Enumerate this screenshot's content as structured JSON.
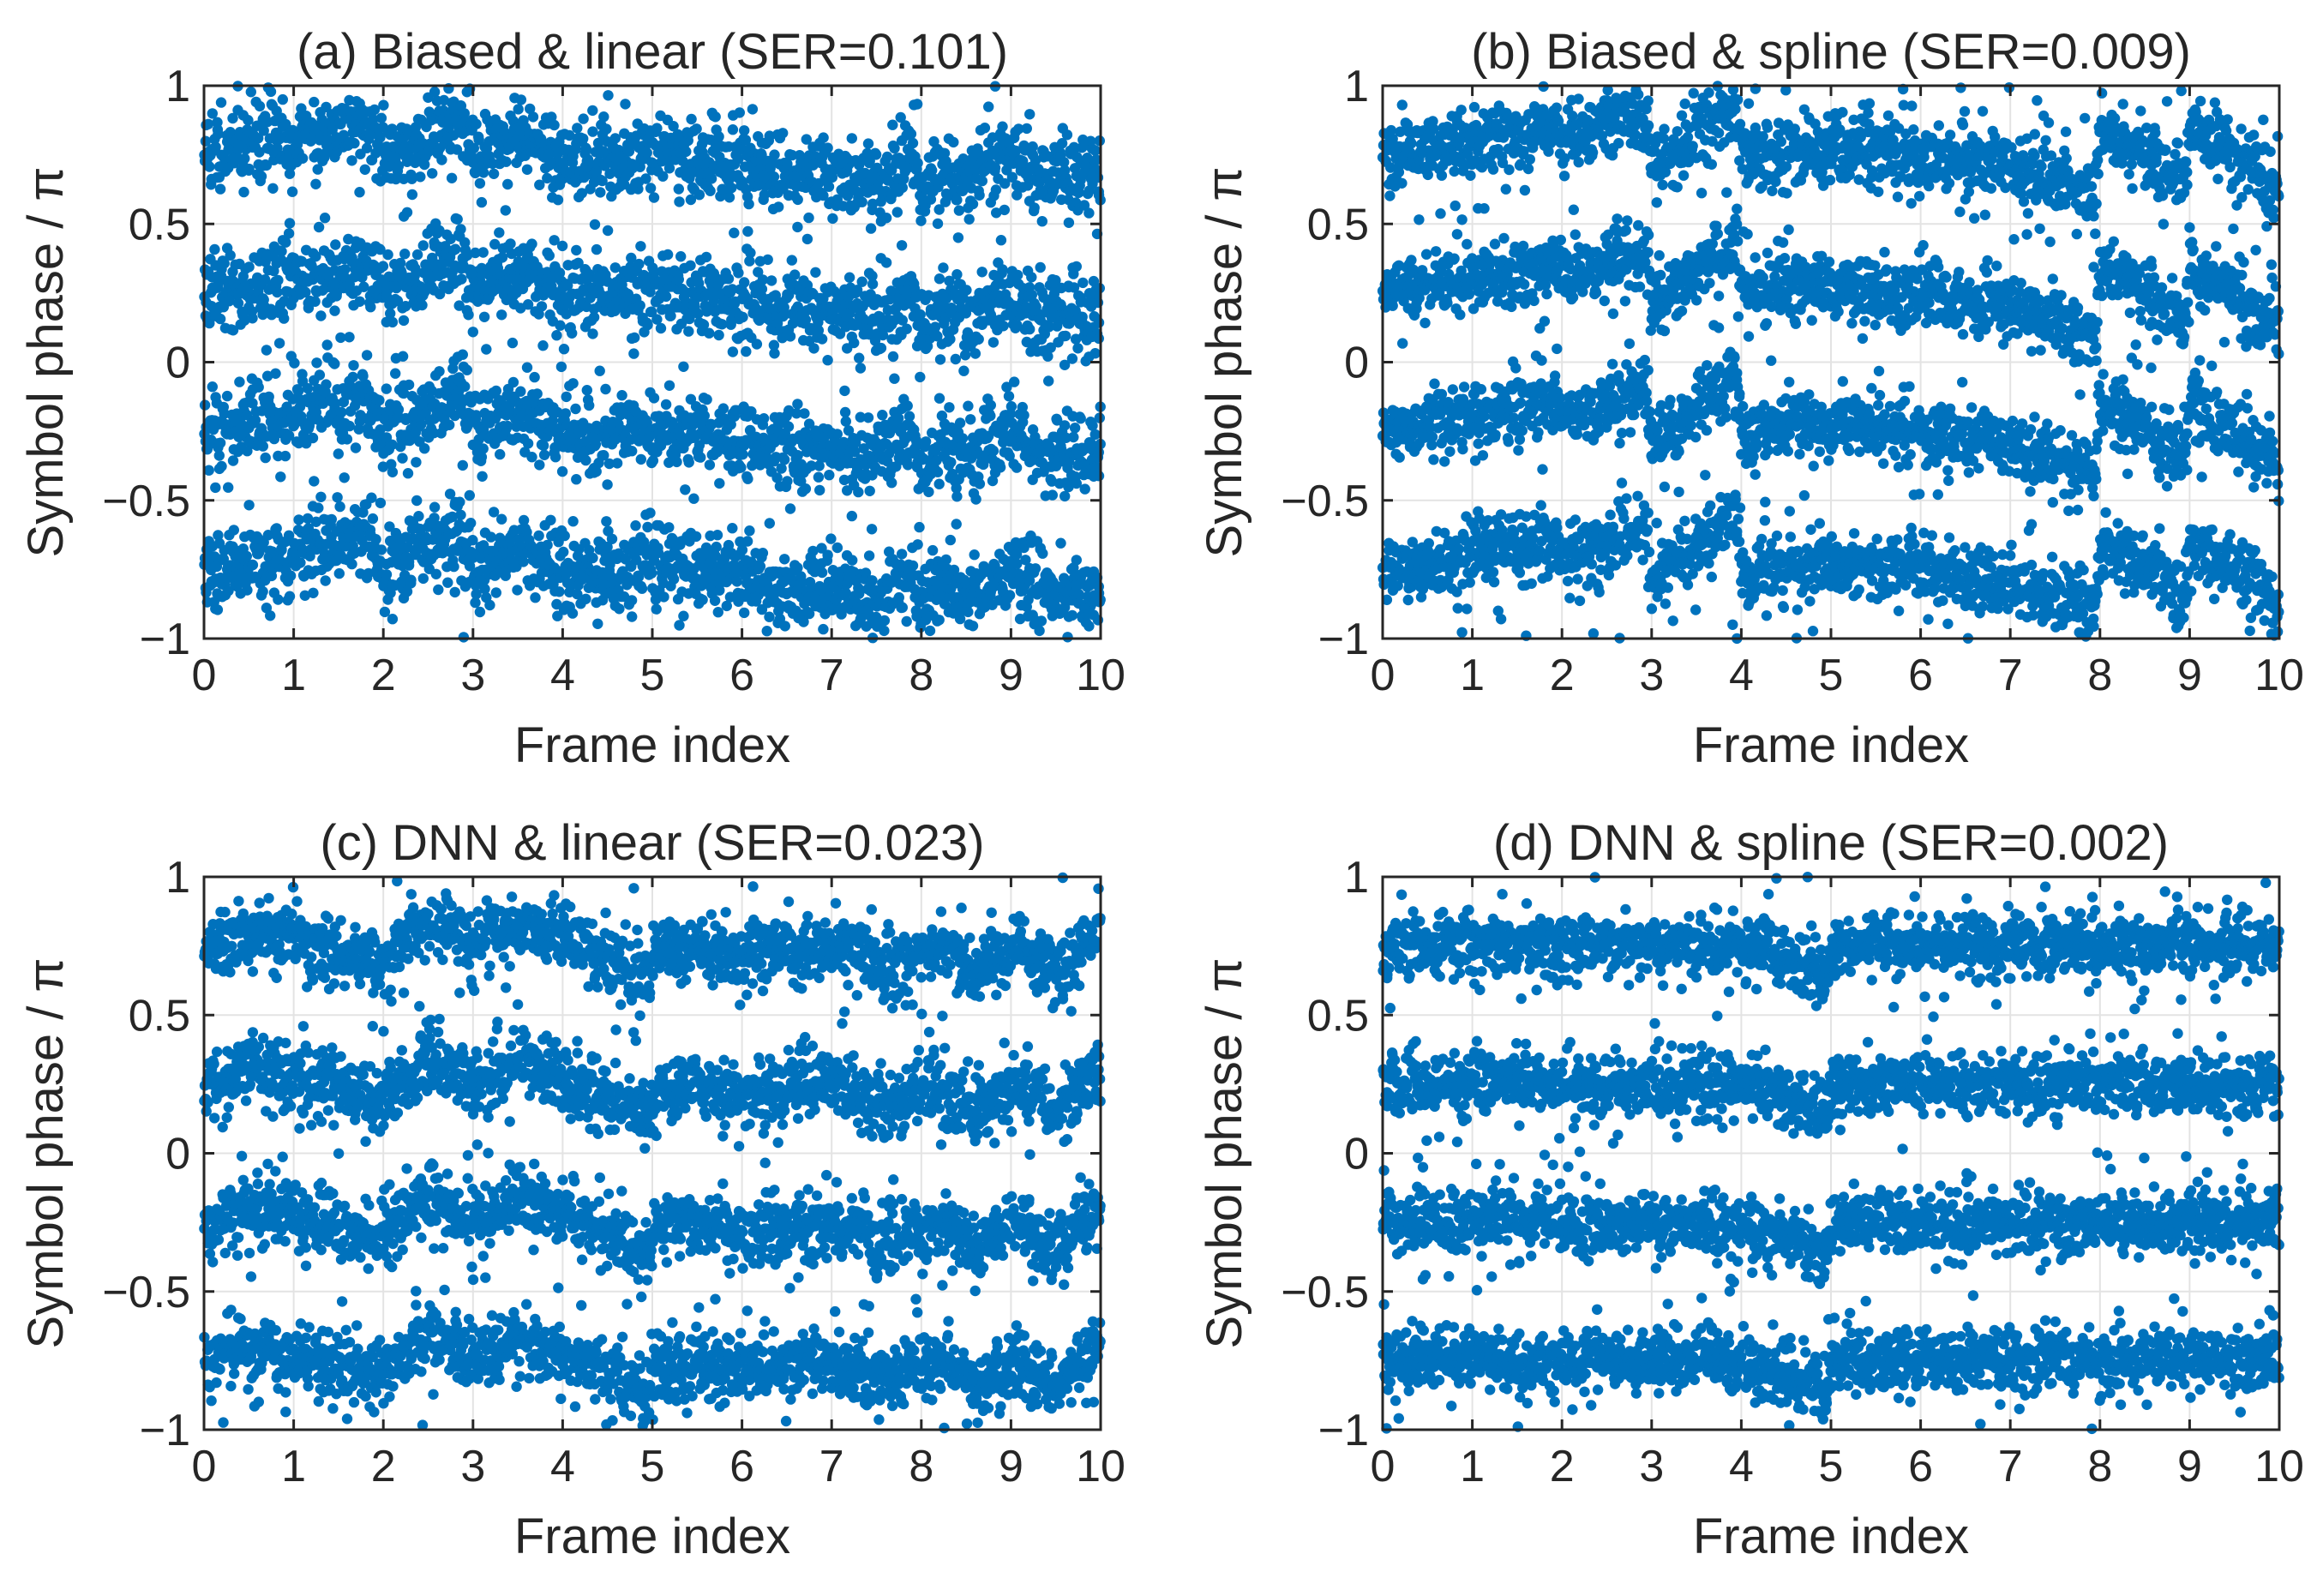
{
  "chart_data": [
    {
      "type": "scatter",
      "id": "a",
      "title": "(a) Biased & linear (SER=0.101)",
      "xlabel": "Frame index",
      "ylabel": "Symbol phase / π",
      "xlim": [
        0,
        10
      ],
      "ylim": [
        -1,
        1
      ],
      "xticks": [
        0,
        1,
        2,
        3,
        4,
        5,
        6,
        7,
        8,
        9,
        10
      ],
      "yticks": [
        -1,
        -0.5,
        0,
        0.5,
        1
      ],
      "ytick_labels": [
        "−1",
        "−0.5",
        "0",
        "0.5",
        "1"
      ],
      "grid": true,
      "color": "#0072BD",
      "series": [
        {
          "name": "phase",
          "bands": [
            0.75,
            0.25,
            -0.25,
            -0.75
          ],
          "spread": 0.07,
          "drift": [
            [
              0,
              0.0
            ],
            [
              0.5,
              0.02
            ],
            [
              1,
              0.05
            ],
            [
              1.8,
              0.12
            ],
            [
              2,
              0.0
            ],
            [
              2.4,
              0.06
            ],
            [
              2.9,
              0.15
            ],
            [
              3,
              0.0
            ],
            [
              3.5,
              0.08
            ],
            [
              3.95,
              0.0
            ],
            [
              4,
              -0.02
            ],
            [
              5,
              0.0
            ],
            [
              6,
              -0.03
            ],
            [
              6.6,
              -0.08
            ],
            [
              7,
              -0.05
            ],
            [
              7.5,
              -0.12
            ],
            [
              7.9,
              0.0
            ],
            [
              8,
              -0.15
            ],
            [
              8.2,
              -0.05
            ],
            [
              8.5,
              -0.1
            ],
            [
              9,
              0.0
            ],
            [
              9.4,
              -0.1
            ],
            [
              10,
              -0.08
            ]
          ]
        }
      ]
    },
    {
      "type": "scatter",
      "id": "b",
      "title": "(b) Biased & spline (SER=0.009)",
      "xlabel": "Frame index",
      "ylabel": "Symbol phase / π",
      "xlim": [
        0,
        10
      ],
      "ylim": [
        -1,
        1
      ],
      "xticks": [
        0,
        1,
        2,
        3,
        4,
        5,
        6,
        7,
        8,
        9,
        10
      ],
      "yticks": [
        -1,
        -0.5,
        0,
        0.5,
        1
      ],
      "ytick_labels": [
        "−1",
        "−0.5",
        "0",
        "0.5",
        "1"
      ],
      "grid": true,
      "color": "#0072BD",
      "series": [
        {
          "name": "phase",
          "bands": [
            0.75,
            0.25,
            -0.25,
            -0.75
          ],
          "spread": 0.06,
          "drift": [
            [
              0,
              0.0
            ],
            [
              1.9,
              0.1
            ],
            [
              2,
              0.05
            ],
            [
              2.95,
              0.15
            ],
            [
              3,
              -0.05
            ],
            [
              3.95,
              0.2
            ],
            [
              4,
              0.0
            ],
            [
              5,
              0.02
            ],
            [
              6,
              0.0
            ],
            [
              7,
              -0.05
            ],
            [
              7.95,
              -0.15
            ],
            [
              8,
              0.1
            ],
            [
              8.95,
              -0.1
            ],
            [
              9,
              0.1
            ],
            [
              10,
              -0.12
            ]
          ]
        }
      ]
    },
    {
      "type": "scatter",
      "id": "c",
      "title": "(c) DNN & linear (SER=0.023)",
      "xlabel": "Frame index",
      "ylabel": "Symbol phase / π",
      "xlim": [
        0,
        10
      ],
      "ylim": [
        -1,
        1
      ],
      "xticks": [
        0,
        1,
        2,
        3,
        4,
        5,
        6,
        7,
        8,
        9,
        10
      ],
      "yticks": [
        -1,
        -0.5,
        0,
        0.5,
        1
      ],
      "ytick_labels": [
        "−1",
        "−0.5",
        "0",
        "0.5",
        "1"
      ],
      "grid": true,
      "color": "#0072BD",
      "series": [
        {
          "name": "phase",
          "bands": [
            0.75,
            0.25,
            -0.25,
            -0.75
          ],
          "spread": 0.06,
          "drift": [
            [
              0,
              0.0
            ],
            [
              0.6,
              0.05
            ],
            [
              1.2,
              0.0
            ],
            [
              2,
              -0.05
            ],
            [
              2.5,
              0.1
            ],
            [
              3,
              0.0
            ],
            [
              3.5,
              0.08
            ],
            [
              4.2,
              0.0
            ],
            [
              5,
              -0.12
            ],
            [
              5.05,
              0.0
            ],
            [
              6,
              -0.03
            ],
            [
              7,
              0.0
            ],
            [
              7.6,
              -0.08
            ],
            [
              8.2,
              0.0
            ],
            [
              8.6,
              -0.1
            ],
            [
              9.1,
              0.0
            ],
            [
              9.5,
              -0.1
            ],
            [
              10,
              0.05
            ]
          ]
        }
      ]
    },
    {
      "type": "scatter",
      "id": "d",
      "title": "(d) DNN & spline (SER=0.002)",
      "xlabel": "Frame index",
      "ylabel": "Symbol phase / π",
      "xlim": [
        0,
        10
      ],
      "ylim": [
        -1,
        1
      ],
      "xticks": [
        0,
        1,
        2,
        3,
        4,
        5,
        6,
        7,
        8,
        9,
        10
      ],
      "yticks": [
        -1,
        -0.5,
        0,
        0.5,
        1
      ],
      "ytick_labels": [
        "−1",
        "−0.5",
        "0",
        "0.5",
        "1"
      ],
      "grid": true,
      "color": "#0072BD",
      "series": [
        {
          "name": "phase",
          "bands": [
            0.75,
            0.25,
            -0.25,
            -0.75
          ],
          "spread": 0.055,
          "drift": [
            [
              0,
              0.0
            ],
            [
              4,
              0.0
            ],
            [
              4.5,
              -0.05
            ],
            [
              4.95,
              -0.12
            ],
            [
              5,
              0.0
            ],
            [
              10,
              0.0
            ]
          ]
        }
      ]
    }
  ]
}
